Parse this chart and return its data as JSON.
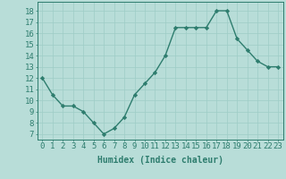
{
  "x": [
    0,
    1,
    2,
    3,
    4,
    5,
    6,
    7,
    8,
    9,
    10,
    11,
    12,
    13,
    14,
    15,
    16,
    17,
    18,
    19,
    20,
    21,
    22,
    23
  ],
  "y": [
    12,
    10.5,
    9.5,
    9.5,
    9,
    8,
    7,
    7.5,
    8.5,
    10.5,
    11.5,
    12.5,
    14,
    16.5,
    16.5,
    16.5,
    16.5,
    18,
    18,
    15.5,
    14.5,
    13.5,
    13,
    13
  ],
  "line_color": "#2e7d6e",
  "marker": "D",
  "marker_size": 2.2,
  "bg_color": "#b8ddd8",
  "grid_color": "#9eccc6",
  "xlabel": "Humidex (Indice chaleur)",
  "yticks": [
    7,
    8,
    9,
    10,
    11,
    12,
    13,
    14,
    15,
    16,
    17,
    18
  ],
  "xlim": [
    -0.5,
    23.5
  ],
  "ylim": [
    6.5,
    18.8
  ],
  "xlabel_fontsize": 7,
  "tick_fontsize": 6.5
}
